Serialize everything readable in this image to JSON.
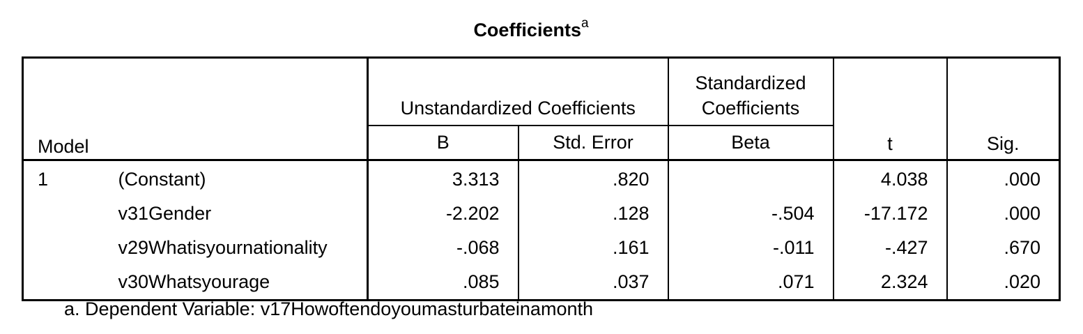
{
  "title": {
    "text": "Coefficients",
    "superscript": "a"
  },
  "header": {
    "model": "Model",
    "unstandardized": "Unstandardized Coefficients",
    "standardized_line1": "Standardized",
    "standardized_line2": "Coefficients",
    "t": "t",
    "sig": "Sig.",
    "b": "B",
    "std_error": "Std. Error",
    "beta": "Beta"
  },
  "rows": [
    {
      "model": "1",
      "name": "(Constant)",
      "b": "3.313",
      "std_error": ".820",
      "beta": "",
      "t": "4.038",
      "sig": ".000"
    },
    {
      "model": "",
      "name": "v31Gender",
      "b": "-2.202",
      "std_error": ".128",
      "beta": "-.504",
      "t": "-17.172",
      "sig": ".000"
    },
    {
      "model": "",
      "name": "v29Whatisyournationality",
      "b": "-.068",
      "std_error": ".161",
      "beta": "-.011",
      "t": "-.427",
      "sig": ".670"
    },
    {
      "model": "",
      "name": "v30Whatsyourage",
      "b": ".085",
      "std_error": ".037",
      "beta": ".071",
      "t": "2.324",
      "sig": ".020"
    }
  ],
  "footnote": "a. Dependent Variable: v17Howoftendoyoumasturbateinamonth"
}
